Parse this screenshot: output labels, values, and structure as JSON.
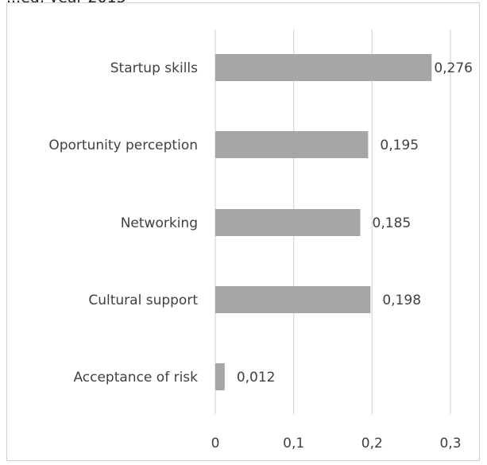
{
  "page": {
    "clipped_text": "...ed, year 2015"
  },
  "chart_data": {
    "type": "bar",
    "orientation": "horizontal",
    "categories": [
      "Startup skills",
      "Oportunity perception",
      "Networking",
      "Cultural support",
      "Acceptance of risk"
    ],
    "values": [
      0.276,
      0.195,
      0.185,
      0.198,
      0.012
    ],
    "value_labels": [
      "0,276",
      "0,195",
      "0,185",
      "0,198",
      "0,012"
    ],
    "x_ticks": [
      0,
      0.1,
      0.2,
      0.3
    ],
    "x_tick_labels": [
      "0",
      "0,1",
      "0,2",
      "0,3"
    ],
    "xlim": [
      0,
      0.3
    ],
    "grid": true,
    "bar_color": "#a6a6a6",
    "grid_color": "#d9d9d9",
    "title": "",
    "xlabel": "",
    "ylabel": ""
  }
}
